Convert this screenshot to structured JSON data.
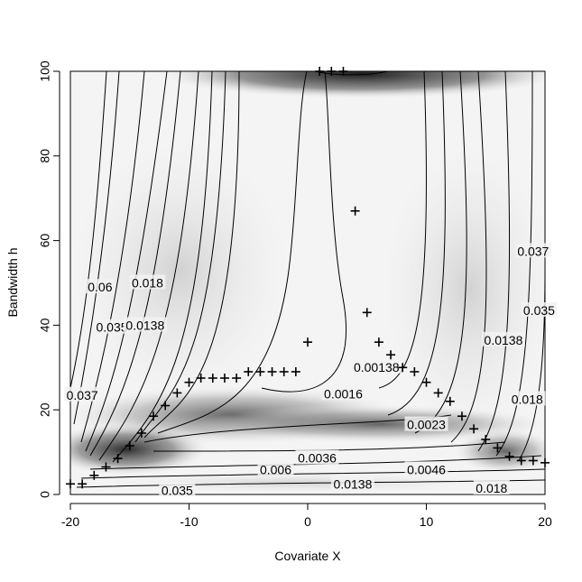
{
  "chart_data": {
    "type": "contour",
    "title": "",
    "xlabel": "Covariate X",
    "ylabel": "Bandwidth h",
    "xlim": [
      -20,
      20
    ],
    "ylim": [
      0,
      100
    ],
    "x_ticks": [
      "-20",
      "-10",
      "0",
      "10",
      "20"
    ],
    "y_ticks": [
      "0",
      "20",
      "40",
      "60",
      "80",
      "100"
    ],
    "background": "grayscale density (dark bands near h=100 top, around h=17 and h=8)",
    "contour_labels": [
      {
        "text": "0.06",
        "x": -17.5,
        "y": 49
      },
      {
        "text": "0.035",
        "x": -16.5,
        "y": 39.5
      },
      {
        "text": "0.037",
        "x": -19,
        "y": 23.5
      },
      {
        "text": "0.018",
        "x": -13.5,
        "y": 50
      },
      {
        "text": "0.0138",
        "x": -13.7,
        "y": 40
      },
      {
        "text": "0.00138",
        "x": 5.8,
        "y": 30.1
      },
      {
        "text": "0.0016",
        "x": 3,
        "y": 23.8
      },
      {
        "text": "0.0023",
        "x": 10,
        "y": 16.5
      },
      {
        "text": "0.0036",
        "x": 0.8,
        "y": 8.6
      },
      {
        "text": "0.006",
        "x": -2.7,
        "y": 5.9
      },
      {
        "text": "0.0046",
        "x": 10,
        "y": 5.9
      },
      {
        "text": "0.035",
        "x": -11,
        "y": 1
      },
      {
        "text": "0.0138",
        "x": 3.8,
        "y": 2.4
      },
      {
        "text": "0.018",
        "x": 15.5,
        "y": 1.5
      },
      {
        "text": "0.037",
        "x": 19,
        "y": 57.5
      },
      {
        "text": "0.035",
        "x": 19.5,
        "y": 43.5
      },
      {
        "text": "0.0138",
        "x": 16.5,
        "y": 36.5
      },
      {
        "text": "0.018",
        "x": 18.5,
        "y": 22.5
      }
    ],
    "points": [
      {
        "x": -20,
        "y": 2.5
      },
      {
        "x": -19,
        "y": 2.5
      },
      {
        "x": -18,
        "y": 4.5
      },
      {
        "x": -17,
        "y": 6.5
      },
      {
        "x": -16,
        "y": 8.5
      },
      {
        "x": -15,
        "y": 11.5
      },
      {
        "x": -14,
        "y": 14.5
      },
      {
        "x": -13,
        "y": 18.5
      },
      {
        "x": -12,
        "y": 21
      },
      {
        "x": -11,
        "y": 24
      },
      {
        "x": -10,
        "y": 26.5
      },
      {
        "x": -9,
        "y": 27.5
      },
      {
        "x": -8,
        "y": 27.5
      },
      {
        "x": -7,
        "y": 27.5
      },
      {
        "x": -6,
        "y": 27.5
      },
      {
        "x": -5,
        "y": 29
      },
      {
        "x": -4,
        "y": 29
      },
      {
        "x": -3,
        "y": 29
      },
      {
        "x": -2,
        "y": 29
      },
      {
        "x": -1,
        "y": 29
      },
      {
        "x": 0,
        "y": 36
      },
      {
        "x": 1,
        "y": 100
      },
      {
        "x": 2,
        "y": 100
      },
      {
        "x": 3,
        "y": 100
      },
      {
        "x": 4,
        "y": 67
      },
      {
        "x": 5,
        "y": 43
      },
      {
        "x": 6,
        "y": 36
      },
      {
        "x": 7,
        "y": 33
      },
      {
        "x": 8,
        "y": 30
      },
      {
        "x": 9,
        "y": 29
      },
      {
        "x": 10,
        "y": 26.5
      },
      {
        "x": 11,
        "y": 24
      },
      {
        "x": 12,
        "y": 22
      },
      {
        "x": 13,
        "y": 18.5
      },
      {
        "x": 14,
        "y": 15.5
      },
      {
        "x": 15,
        "y": 13
      },
      {
        "x": 16,
        "y": 11
      },
      {
        "x": 17,
        "y": 9
      },
      {
        "x": 18,
        "y": 8
      },
      {
        "x": 19,
        "y": 8
      },
      {
        "x": 20,
        "y": 7.5
      }
    ]
  }
}
